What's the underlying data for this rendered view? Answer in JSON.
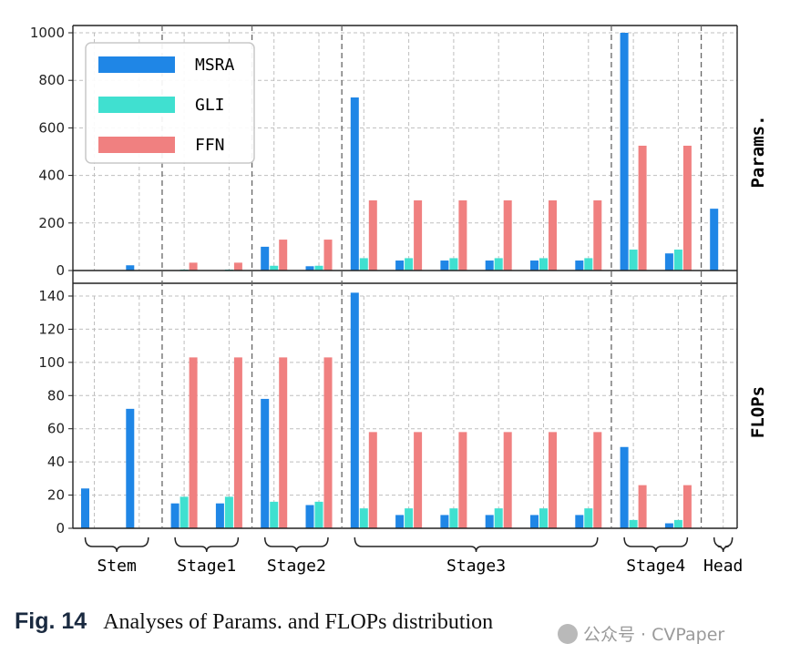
{
  "figure": {
    "caption_label": "Fig. 14",
    "caption_text": "Analyses of Params. and FLOPs distribution",
    "watermark": "公众号 · CVPaper"
  },
  "colors": {
    "MSRA": "#1f86e6",
    "GLI": "#40e0d0",
    "FFN": "#f08080",
    "grid": "#bfbfbf",
    "separator": "#666666"
  },
  "chart_data": [
    {
      "type": "bar",
      "ylabel": "Params.",
      "ylim": [
        0,
        1000
      ],
      "yticks": [
        0,
        200,
        400,
        600,
        800,
        1000
      ],
      "grid": true,
      "legend_position": "top-left",
      "series": [
        {
          "name": "MSRA",
          "values": [
            0,
            22,
            0,
            0,
            100,
            18,
            728,
            42,
            42,
            42,
            42,
            42,
            1000,
            72,
            260
          ]
        },
        {
          "name": "GLI",
          "values": [
            0,
            0,
            4,
            4,
            20,
            20,
            52,
            52,
            52,
            52,
            52,
            52,
            88,
            88,
            0
          ]
        },
        {
          "name": "FFN",
          "values": [
            0,
            0,
            33,
            33,
            130,
            130,
            295,
            295,
            295,
            295,
            295,
            295,
            525,
            525,
            0
          ]
        }
      ]
    },
    {
      "type": "bar",
      "ylabel": "FLOPs",
      "ylim": [
        0,
        145
      ],
      "yticks": [
        0,
        20,
        40,
        60,
        80,
        100,
        120,
        140
      ],
      "grid": true,
      "series": [
        {
          "name": "MSRA",
          "values": [
            24,
            72,
            15,
            15,
            78,
            14,
            142,
            8,
            8,
            8,
            8,
            8,
            49,
            3,
            0
          ]
        },
        {
          "name": "GLI",
          "values": [
            0,
            0,
            19,
            19,
            16,
            16,
            12,
            12,
            12,
            12,
            12,
            12,
            5,
            5,
            0
          ]
        },
        {
          "name": "FFN",
          "values": [
            0,
            0,
            103,
            103,
            103,
            103,
            58,
            58,
            58,
            58,
            58,
            58,
            26,
            26,
            0
          ]
        }
      ]
    }
  ],
  "stages": [
    {
      "label": "Stem",
      "blocks": 2
    },
    {
      "label": "Stage1",
      "blocks": 2
    },
    {
      "label": "Stage2",
      "blocks": 2
    },
    {
      "label": "Stage3",
      "blocks": 6
    },
    {
      "label": "Stage4",
      "blocks": 2
    },
    {
      "label": "Head",
      "blocks": 1
    }
  ]
}
